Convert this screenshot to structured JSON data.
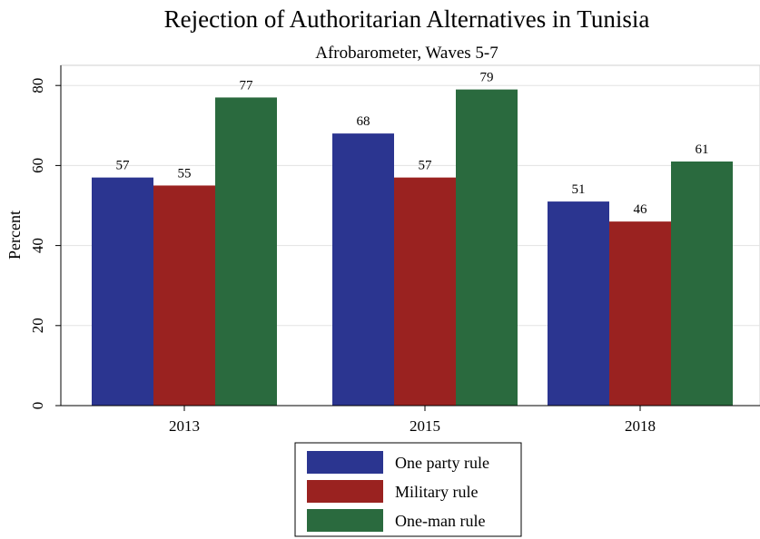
{
  "chart_data": {
    "type": "bar",
    "title": "Rejection of Authoritarian Alternatives in Tunisia",
    "subtitle": "Afrobarometer, Waves 5-7",
    "xlabel": "",
    "ylabel": "Percent",
    "ylim": [
      0,
      85
    ],
    "yticks": [
      "0",
      "20",
      "40",
      "60",
      "80"
    ],
    "grid": true,
    "legend_position": "bottom",
    "categories": [
      "2013",
      "2015",
      "2018"
    ],
    "series": [
      {
        "name": "One party rule",
        "color": "#2b3590",
        "values": [
          57,
          68,
          51
        ]
      },
      {
        "name": "Military rule",
        "color": "#9a2220",
        "values": [
          55,
          57,
          46
        ]
      },
      {
        "name": "One-man rule",
        "color": "#2a6a3e",
        "values": [
          77,
          79,
          61
        ]
      }
    ]
  }
}
